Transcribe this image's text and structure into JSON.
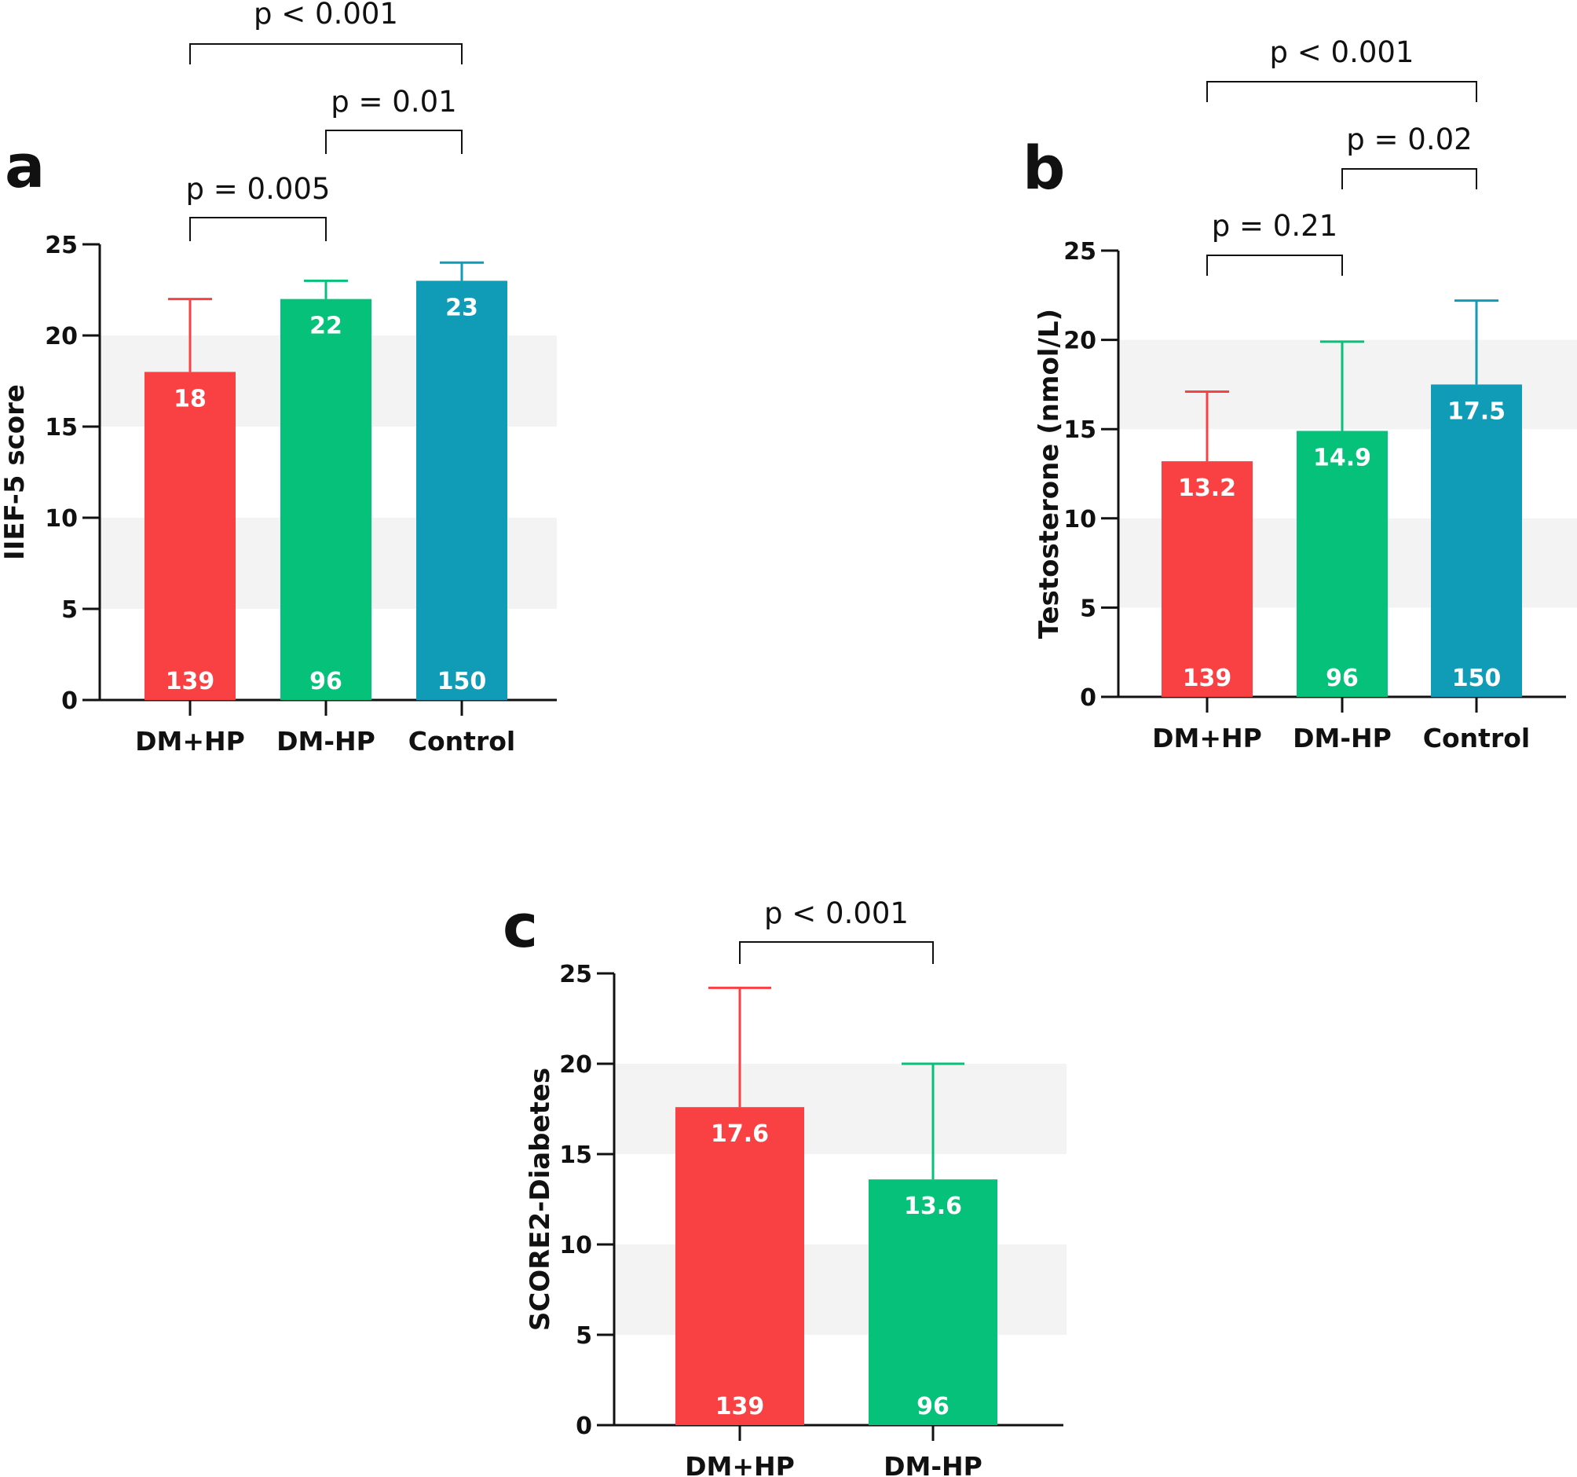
{
  "colors": {
    "red": "#f94144",
    "green": "#06c17a",
    "teal": "#109bb6",
    "band": "#f3f3f3",
    "axis": "#111111"
  },
  "chart_data": [
    {
      "type": "bar",
      "panel_label": "a",
      "ylabel": "IIEF-5 score",
      "ylim": [
        0,
        25
      ],
      "yticks": [
        0,
        5,
        10,
        15,
        20,
        25
      ],
      "grid": "alternating bands",
      "categories": [
        "DM+HP",
        "DM-HP",
        "Control"
      ],
      "values": [
        18,
        22,
        23
      ],
      "value_labels": [
        "18",
        "22",
        "23"
      ],
      "error_upper": [
        22,
        23,
        24
      ],
      "n": [
        "139",
        "96",
        "150"
      ],
      "bar_colors": [
        "#f94144",
        "#06c17a",
        "#109bb6"
      ],
      "comparisons": [
        {
          "from": 0,
          "to": 1,
          "label": "p = 0.005"
        },
        {
          "from": 1,
          "to": 2,
          "label": "p = 0.01"
        },
        {
          "from": 0,
          "to": 2,
          "label": "p < 0.001"
        }
      ]
    },
    {
      "type": "bar",
      "panel_label": "b",
      "ylabel": "Testosterone (nmol/L)",
      "ylim": [
        0,
        25
      ],
      "yticks": [
        0,
        5,
        10,
        15,
        20,
        25
      ],
      "grid": "alternating bands",
      "categories": [
        "DM+HP",
        "DM-HP",
        "Control"
      ],
      "values": [
        13.2,
        14.9,
        17.5
      ],
      "value_labels": [
        "13.2",
        "14.9",
        "17.5"
      ],
      "error_upper": [
        17.1,
        19.9,
        22.2
      ],
      "n": [
        "139",
        "96",
        "150"
      ],
      "bar_colors": [
        "#f94144",
        "#06c17a",
        "#109bb6"
      ],
      "comparisons": [
        {
          "from": 0,
          "to": 1,
          "label": "p = 0.21"
        },
        {
          "from": 1,
          "to": 2,
          "label": "p = 0.02"
        },
        {
          "from": 0,
          "to": 2,
          "label": "p < 0.001"
        }
      ]
    },
    {
      "type": "bar",
      "panel_label": "c",
      "ylabel": "SCORE2-Diabetes",
      "ylim": [
        0,
        25
      ],
      "yticks": [
        0,
        5,
        10,
        15,
        20,
        25
      ],
      "grid": "alternating bands",
      "categories": [
        "DM+HP",
        "DM-HP"
      ],
      "values": [
        17.6,
        13.6
      ],
      "value_labels": [
        "17.6",
        "13.6"
      ],
      "error_upper": [
        24.2,
        20.0
      ],
      "n": [
        "139",
        "96"
      ],
      "bar_colors": [
        "#f94144",
        "#06c17a"
      ],
      "comparisons": [
        {
          "from": 0,
          "to": 1,
          "label": "p < 0.001"
        }
      ]
    }
  ]
}
